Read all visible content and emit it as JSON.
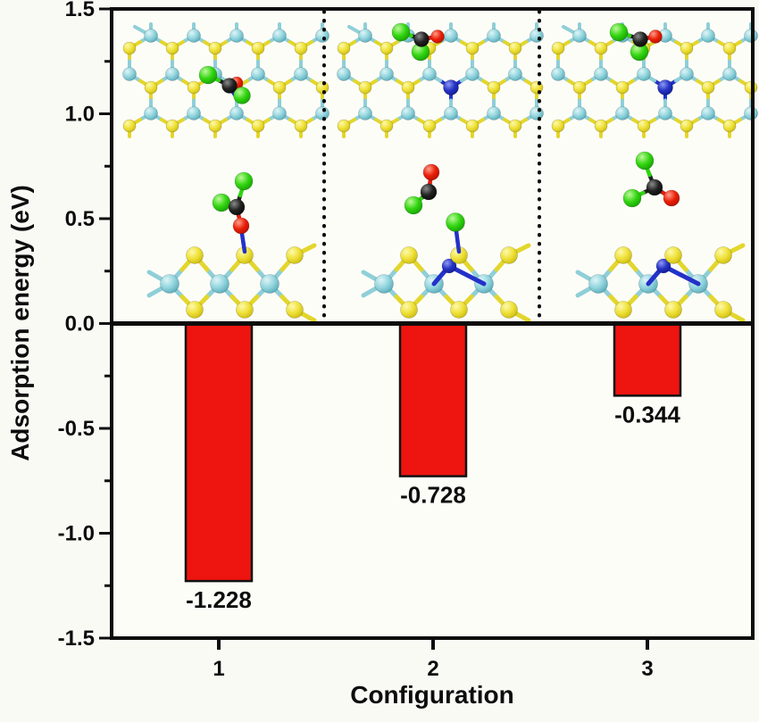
{
  "chart_data": {
    "type": "bar",
    "title": "",
    "categories": [
      "1",
      "2",
      "3"
    ],
    "values": [
      -1.228,
      -0.728,
      -0.344
    ],
    "bar_labels": [
      "-1.228",
      "-0.728",
      "-0.344"
    ],
    "xlabel": "Configuration",
    "ylabel": "Adsorption energy (eV)",
    "ylim": [
      -1.5,
      1.5
    ],
    "yticks_major": [
      1.5,
      1.0,
      0.5,
      0.0,
      -0.5,
      -1.0,
      -1.5
    ],
    "ytick_labels": [
      "1.5",
      "1.0",
      "0.5",
      "0.0",
      "-0.5",
      "-1.0",
      "-1.5"
    ],
    "yticks_minor": [
      1.25,
      0.75,
      0.25,
      -0.25,
      -0.75,
      -1.25
    ],
    "bar_color": "#ee1410",
    "bar_outline": "#111111",
    "grid": false,
    "legend": "none",
    "insets": {
      "layout": "three ball-and-stick model panels (top view over side view), one per configuration, separated by vertical dotted lines above the zero line",
      "atom_colors": {
        "Mo": "#8ed3db",
        "S": "#ecdf33",
        "C": "#1c1c1c",
        "O": "#e41c0c",
        "Cl": "#2fd50f",
        "N": "#2431c9"
      }
    }
  }
}
